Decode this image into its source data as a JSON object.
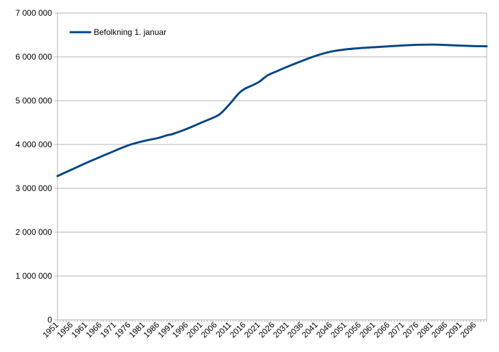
{
  "chart_data": {
    "type": "line",
    "title": "",
    "xlabel": "",
    "ylabel": "",
    "ylim": [
      0,
      7000000
    ],
    "xlim": [
      1951,
      2100
    ],
    "grid": true,
    "legend": "top-left",
    "yticks": [
      {
        "value": 0,
        "label": "0"
      },
      {
        "value": 1000000,
        "label": "1 000 000"
      },
      {
        "value": 2000000,
        "label": "2 000 000"
      },
      {
        "value": 3000000,
        "label": "3 000 000"
      },
      {
        "value": 4000000,
        "label": "4 000 000"
      },
      {
        "value": 5000000,
        "label": "5 000 000"
      },
      {
        "value": 6000000,
        "label": "6 000 000"
      },
      {
        "value": 7000000,
        "label": "7 000 000"
      }
    ],
    "xticks": [
      "1951",
      "1956",
      "1961",
      "1966",
      "1971",
      "1976",
      "1981",
      "1986",
      "1991",
      "1996",
      "2001",
      "2006",
      "2011",
      "2016",
      "2021",
      "2026",
      "2031",
      "2036",
      "2041",
      "2046",
      "2051",
      "2056",
      "2061",
      "2066",
      "2071",
      "2076",
      "2081",
      "2086",
      "2091",
      "2096"
    ],
    "series": [
      {
        "name": "Befolkning 1. januar",
        "color": "#004586",
        "x": [
          1951,
          1956,
          1961,
          1966,
          1971,
          1976,
          1981,
          1986,
          1989,
          1991,
          1996,
          2001,
          2006,
          2008,
          2011,
          2014,
          2016,
          2019,
          2021,
          2022,
          2024,
          2026,
          2031,
          2036,
          2041,
          2046,
          2051,
          2056,
          2061,
          2066,
          2071,
          2076,
          2081,
          2086,
          2091,
          2096,
          2100
        ],
        "values": [
          3280000,
          3430000,
          3580000,
          3720000,
          3860000,
          3990000,
          4080000,
          4150000,
          4210000,
          4240000,
          4360000,
          4500000,
          4640000,
          4730000,
          4940000,
          5170000,
          5270000,
          5360000,
          5430000,
          5480000,
          5580000,
          5640000,
          5780000,
          5910000,
          6030000,
          6120000,
          6170000,
          6200000,
          6220000,
          6240000,
          6260000,
          6275000,
          6280000,
          6270000,
          6255000,
          6245000,
          6240000
        ]
      }
    ]
  }
}
